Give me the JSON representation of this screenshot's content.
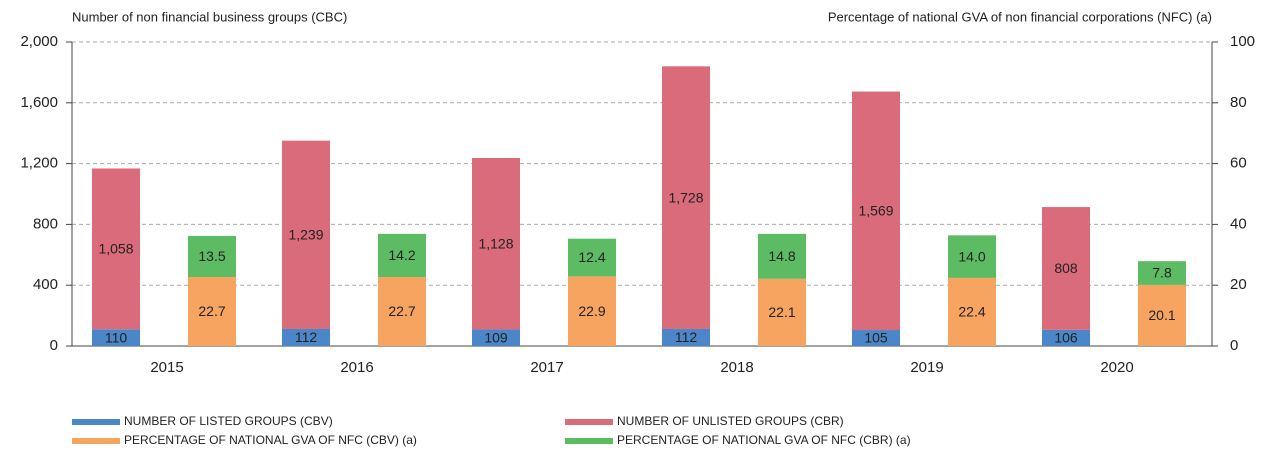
{
  "chart_data": {
    "type": "bar",
    "stacked": true,
    "y_axis_label": "Number of non financial business groups (CBC)",
    "y2_axis_label": "Percentage of national GVA of non financial corporations (NFC) (a)",
    "categories": [
      "2015",
      "2016",
      "2017",
      "2018",
      "2019",
      "2020"
    ],
    "series": [
      {
        "name": "NUMBER OF LISTED GROUPS (CBV)",
        "color": "#4a86c8",
        "values": [
          110,
          112,
          109,
          112,
          105,
          106
        ]
      },
      {
        "name": "NUMBER OF UNLISTED GROUPS (CBR)",
        "color": "#d96b7b",
        "values": [
          1058,
          1239,
          1128,
          1728,
          1569,
          808
        ],
        "value_labels": [
          "1,058",
          "1,239",
          "1,128",
          "1,728",
          "1,569",
          "808"
        ]
      },
      {
        "name": "PERCENTAGE OF NATIONAL GVA OF NFC (CBV) (a)",
        "color": "#f7a460",
        "axis": "y2",
        "values": [
          22.7,
          22.7,
          22.9,
          22.1,
          22.4,
          20.1
        ]
      },
      {
        "name": "PERCENTAGE OF NATIONAL GVA OF NFC (CBR) (a)",
        "color": "#5dbb63",
        "axis": "y2",
        "values": [
          13.5,
          14.2,
          12.4,
          14.8,
          14.0,
          7.8
        ],
        "value_labels": [
          "13.5",
          "14.2",
          "12.4",
          "14.8",
          "14.0",
          "7.8"
        ]
      }
    ],
    "ylim": [
      0,
      2000
    ],
    "yticks": [
      0,
      400,
      800,
      {
        "value": 1200,
        "label": "1,200"
      },
      {
        "value": 1600,
        "label": "1,600"
      },
      {
        "value": 2000,
        "label": "2,000"
      }
    ],
    "y2lim": [
      0,
      100
    ],
    "y2ticks": [
      0,
      20,
      40,
      60,
      80,
      100
    ],
    "grid": true,
    "legend": "bottom"
  }
}
